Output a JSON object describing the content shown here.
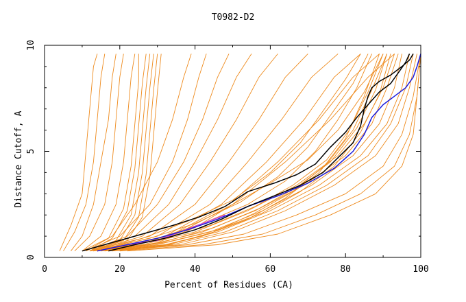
{
  "chart_data": {
    "type": "line",
    "title": "T0982-D2",
    "xlabel": "Percent of Residues (CA)",
    "ylabel": "Distance Cutoff, A",
    "xlim": [
      0,
      100
    ],
    "ylim": [
      0,
      10
    ],
    "x_ticks": [
      0,
      20,
      40,
      60,
      80,
      100
    ],
    "y_ticks": [
      0,
      5,
      10
    ],
    "x_tick_labels": [
      "0",
      "20",
      "40",
      "60",
      "80",
      "100"
    ],
    "y_tick_labels": [
      "0",
      "5",
      "10"
    ],
    "grid": false,
    "colors": {
      "orange": "#ee8a1c",
      "black": "#000000",
      "blue": "#1a1adc",
      "purple": "#cc44cc"
    },
    "series": [
      {
        "color": "orange",
        "x": [
          4,
          7,
          10,
          11,
          12,
          13,
          14
        ],
        "y": [
          0.3,
          1.5,
          3.0,
          5.0,
          7.0,
          9.0,
          9.6
        ]
      },
      {
        "color": "orange",
        "x": [
          5,
          8,
          11,
          13,
          14,
          15,
          16
        ],
        "y": [
          0.3,
          1.2,
          2.5,
          4.5,
          6.5,
          8.5,
          9.6
        ]
      },
      {
        "color": "orange",
        "x": [
          7,
          10,
          13,
          15,
          17,
          18,
          19
        ],
        "y": [
          0.3,
          1.0,
          2.5,
          4.5,
          6.5,
          8.5,
          9.6
        ]
      },
      {
        "color": "orange",
        "x": [
          8,
          12,
          16,
          18,
          19,
          20,
          21
        ],
        "y": [
          0.3,
          1.0,
          2.5,
          4.5,
          6.5,
          8.5,
          9.6
        ]
      },
      {
        "color": "orange",
        "x": [
          10,
          15,
          19,
          21,
          22,
          23,
          24
        ],
        "y": [
          0.3,
          1.0,
          2.5,
          4.5,
          6.5,
          8.5,
          9.6
        ]
      },
      {
        "color": "orange",
        "x": [
          11,
          17,
          21,
          23,
          24,
          25,
          25
        ],
        "y": [
          0.3,
          0.9,
          2.3,
          4.3,
          6.3,
          8.3,
          9.6
        ]
      },
      {
        "color": "orange",
        "x": [
          12,
          18,
          22,
          24,
          25,
          26,
          27
        ],
        "y": [
          0.3,
          0.9,
          2.2,
          4.2,
          6.2,
          8.2,
          9.6
        ]
      },
      {
        "color": "orange",
        "x": [
          12,
          19,
          23,
          25,
          26,
          27,
          28
        ],
        "y": [
          0.3,
          0.8,
          2.0,
          4.0,
          6.0,
          8.0,
          9.6
        ]
      },
      {
        "color": "orange",
        "x": [
          13,
          20,
          24,
          26,
          27,
          28,
          29
        ],
        "y": [
          0.3,
          0.8,
          2.0,
          4.0,
          6.0,
          8.0,
          9.6
        ]
      },
      {
        "color": "orange",
        "x": [
          13,
          21,
          25,
          27,
          28,
          29,
          30
        ],
        "y": [
          0.3,
          0.8,
          1.9,
          3.9,
          5.9,
          7.9,
          9.6
        ]
      },
      {
        "color": "orange",
        "x": [
          14,
          22,
          26,
          28,
          29,
          30,
          31
        ],
        "y": [
          0.3,
          0.8,
          1.9,
          3.8,
          5.8,
          7.8,
          9.6
        ]
      },
      {
        "color": "orange",
        "x": [
          10,
          18,
          24,
          30,
          34,
          37,
          39
        ],
        "y": [
          0.3,
          1.0,
          2.5,
          4.5,
          6.5,
          8.5,
          9.6
        ]
      },
      {
        "color": "orange",
        "x": [
          11,
          20,
          28,
          34,
          38,
          41,
          43
        ],
        "y": [
          0.3,
          1.0,
          2.5,
          4.5,
          6.5,
          8.5,
          9.6
        ]
      },
      {
        "color": "orange",
        "x": [
          12,
          22,
          30,
          37,
          42,
          46,
          49
        ],
        "y": [
          0.3,
          1.0,
          2.5,
          4.5,
          6.5,
          8.5,
          9.6
        ]
      },
      {
        "color": "orange",
        "x": [
          12,
          24,
          33,
          40,
          46,
          51,
          55
        ],
        "y": [
          0.3,
          1.0,
          2.5,
          4.5,
          6.5,
          8.5,
          9.6
        ]
      },
      {
        "color": "orange",
        "x": [
          13,
          26,
          36,
          44,
          51,
          57,
          62
        ],
        "y": [
          0.3,
          1.0,
          2.5,
          4.5,
          6.5,
          8.5,
          9.6
        ]
      },
      {
        "color": "orange",
        "x": [
          14,
          28,
          40,
          49,
          57,
          64,
          70
        ],
        "y": [
          0.3,
          1.0,
          2.5,
          4.5,
          6.5,
          8.5,
          9.6
        ]
      },
      {
        "color": "orange",
        "x": [
          14,
          30,
          44,
          54,
          63,
          71,
          78
        ],
        "y": [
          0.3,
          1.0,
          2.5,
          4.5,
          6.5,
          8.5,
          9.6
        ]
      },
      {
        "color": "orange",
        "x": [
          15,
          32,
          47,
          59,
          69,
          77,
          84
        ],
        "y": [
          0.3,
          1.0,
          2.5,
          4.5,
          6.5,
          8.5,
          9.6
        ]
      },
      {
        "color": "orange",
        "x": [
          15,
          33,
          49,
          62,
          73,
          82,
          89
        ],
        "y": [
          0.3,
          1.0,
          2.5,
          4.5,
          6.5,
          8.5,
          9.6
        ]
      },
      {
        "color": "orange",
        "x": [
          16,
          34,
          50,
          64,
          76,
          86,
          93
        ],
        "y": [
          0.3,
          1.0,
          2.5,
          4.5,
          6.5,
          8.5,
          9.6
        ]
      },
      {
        "color": "orange",
        "x": [
          12,
          26,
          40,
          54,
          67,
          78,
          85,
          90,
          93
        ],
        "y": [
          0.3,
          0.6,
          1.2,
          2.2,
          3.4,
          4.8,
          6.3,
          8.0,
          9.6
        ]
      },
      {
        "color": "orange",
        "x": [
          13,
          28,
          42,
          56,
          69,
          80,
          87,
          91,
          94
        ],
        "y": [
          0.3,
          0.6,
          1.2,
          2.2,
          3.4,
          4.8,
          6.3,
          8.0,
          9.6
        ]
      },
      {
        "color": "orange",
        "x": [
          14,
          30,
          44,
          58,
          71,
          82,
          89,
          93,
          95
        ],
        "y": [
          0.3,
          0.6,
          1.2,
          2.2,
          3.4,
          4.8,
          6.3,
          8.0,
          9.6
        ]
      },
      {
        "color": "orange",
        "x": [
          15,
          32,
          46,
          60,
          73,
          84,
          91,
          95,
          97
        ],
        "y": [
          0.3,
          0.6,
          1.2,
          2.2,
          3.4,
          4.8,
          6.3,
          8.0,
          9.6
        ]
      },
      {
        "color": "orange",
        "x": [
          16,
          34,
          48,
          62,
          75,
          86,
          92,
          96,
          98
        ],
        "y": [
          0.3,
          0.6,
          1.2,
          2.2,
          3.4,
          4.8,
          6.3,
          8.0,
          9.6
        ]
      },
      {
        "color": "orange",
        "x": [
          17,
          36,
          50,
          64,
          77,
          88,
          94,
          97,
          99
        ],
        "y": [
          0.3,
          0.6,
          1.2,
          2.2,
          3.4,
          4.8,
          6.3,
          8.0,
          9.6
        ]
      },
      {
        "color": "orange",
        "x": [
          18,
          38,
          53,
          67,
          80,
          90,
          95,
          98,
          100
        ],
        "y": [
          0.3,
          0.6,
          1.1,
          2.0,
          3.0,
          4.3,
          5.8,
          7.6,
          9.6
        ]
      },
      {
        "color": "orange",
        "x": [
          20,
          42,
          58,
          72,
          84,
          93,
          97,
          99,
          100
        ],
        "y": [
          0.3,
          0.6,
          1.1,
          2.0,
          3.0,
          4.3,
          5.8,
          7.6,
          9.6
        ]
      },
      {
        "color": "orange",
        "x": [
          22,
          46,
          62,
          76,
          88,
          95,
          98,
          99,
          100
        ],
        "y": [
          0.3,
          0.6,
          1.1,
          2.0,
          3.0,
          4.3,
          5.8,
          7.6,
          9.6
        ]
      },
      {
        "color": "orange",
        "x": [
          14,
          30,
          42,
          54,
          64,
          72,
          78,
          83,
          87
        ],
        "y": [
          0.3,
          0.9,
          1.6,
          2.5,
          3.6,
          5.0,
          6.5,
          8.0,
          9.6
        ]
      },
      {
        "color": "orange",
        "x": [
          13,
          28,
          40,
          52,
          62,
          70,
          76,
          82,
          86
        ],
        "y": [
          0.3,
          0.9,
          1.6,
          2.6,
          3.8,
          5.2,
          6.7,
          8.2,
          9.6
        ]
      },
      {
        "color": "orange",
        "x": [
          12,
          26,
          38,
          50,
          60,
          68,
          74,
          80,
          84
        ],
        "y": [
          0.3,
          0.9,
          1.7,
          2.7,
          4.0,
          5.4,
          6.9,
          8.4,
          9.6
        ]
      },
      {
        "color": "orange",
        "x": [
          14,
          30,
          44,
          56,
          66,
          75,
          81,
          86,
          90
        ],
        "y": [
          0.3,
          0.8,
          1.5,
          2.4,
          3.4,
          4.6,
          6.0,
          7.8,
          9.6
        ]
      },
      {
        "color": "orange",
        "x": [
          20,
          30,
          42,
          54,
          64,
          73,
          80,
          85,
          89
        ],
        "y": [
          0.3,
          0.5,
          1.0,
          1.8,
          2.8,
          4.0,
          5.6,
          7.6,
          9.6
        ]
      },
      {
        "color": "orange",
        "x": [
          16,
          32,
          46,
          58,
          68,
          77,
          84,
          89,
          92
        ],
        "y": [
          0.3,
          0.7,
          1.3,
          2.1,
          3.1,
          4.3,
          5.9,
          7.7,
          9.6
        ]
      },
      {
        "color": "orange",
        "x": [
          15,
          31,
          45,
          57,
          67,
          76,
          83,
          88,
          91
        ],
        "y": [
          0.3,
          0.7,
          1.4,
          2.3,
          3.3,
          4.5,
          6.1,
          7.9,
          9.6
        ]
      },
      {
        "color": "orange",
        "x": [
          17,
          30,
          40,
          50,
          60,
          70,
          78,
          85,
          90
        ],
        "y": [
          0.3,
          0.7,
          1.4,
          2.5,
          3.5,
          4.6,
          6.0,
          7.8,
          9.6
        ]
      },
      {
        "color": "orange",
        "x": [
          18,
          33,
          45,
          56,
          66,
          75,
          82,
          87,
          91
        ],
        "y": [
          0.3,
          0.6,
          1.2,
          2.1,
          3.1,
          4.4,
          6.0,
          7.9,
          9.6
        ]
      },
      {
        "color": "black",
        "x": [
          10,
          18,
          26,
          34,
          41,
          48,
          54,
          61,
          67,
          72,
          76,
          80,
          83,
          85,
          87,
          89,
          92,
          94,
          96,
          97
        ],
        "y": [
          0.3,
          0.7,
          1.1,
          1.5,
          1.9,
          2.4,
          3.1,
          3.5,
          3.9,
          4.4,
          5.2,
          5.9,
          6.6,
          7.0,
          7.4,
          7.8,
          8.2,
          8.7,
          9.2,
          9.6
        ]
      },
      {
        "color": "black",
        "x": [
          17,
          24,
          32,
          40,
          47,
          54,
          61,
          68,
          74,
          78,
          82,
          84,
          85,
          86,
          87,
          89,
          92,
          95,
          97,
          98
        ],
        "y": [
          0.3,
          0.6,
          0.9,
          1.3,
          1.8,
          2.4,
          2.9,
          3.4,
          4.0,
          4.7,
          5.4,
          6.2,
          7.0,
          7.6,
          8.0,
          8.3,
          8.6,
          9.0,
          9.3,
          9.6
        ]
      },
      {
        "color": "blue",
        "x": [
          14,
          22,
          30,
          38,
          46,
          54,
          62,
          70,
          77,
          82,
          85,
          87,
          90,
          93,
          96,
          98,
          99,
          100
        ],
        "y": [
          0.3,
          0.6,
          0.9,
          1.3,
          1.8,
          2.4,
          2.9,
          3.5,
          4.2,
          5.0,
          5.8,
          6.6,
          7.2,
          7.6,
          8.0,
          8.5,
          9.0,
          9.6
        ]
      },
      {
        "color": "purple",
        "x": [
          14,
          22,
          30,
          36,
          42,
          48
        ],
        "y": [
          0.3,
          0.6,
          0.8,
          1.2,
          1.6,
          2.0
        ]
      }
    ]
  }
}
